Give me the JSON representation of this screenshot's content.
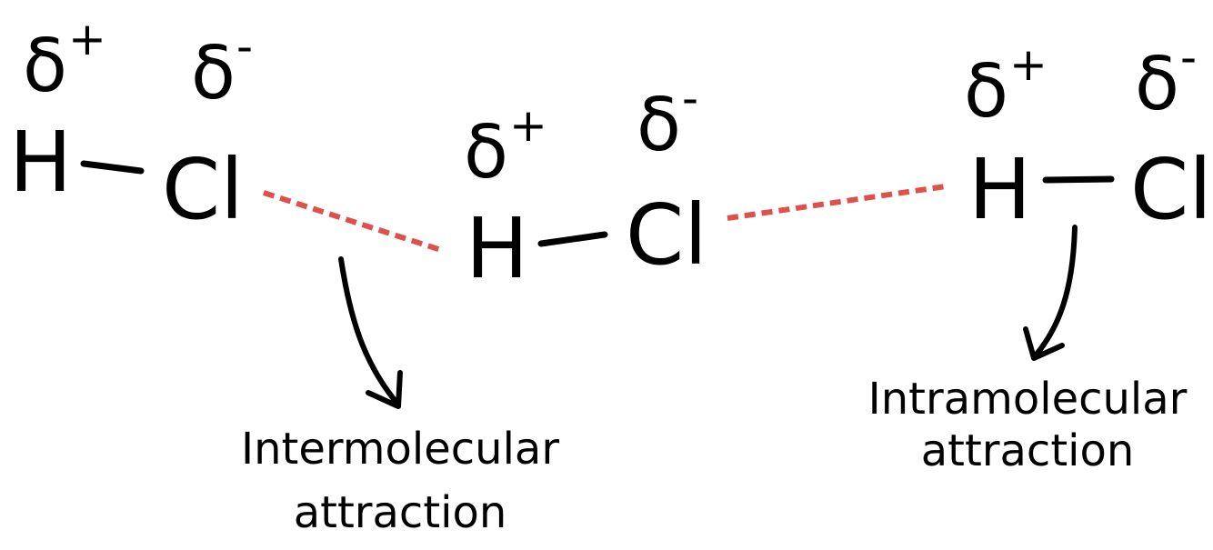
{
  "molecules": [
    {
      "atoms": [
        "H",
        "Cl"
      ],
      "charges": [
        {
          "symbol": "δ",
          "sign": "+"
        },
        {
          "symbol": "δ",
          "sign": "-"
        }
      ]
    },
    {
      "atoms": [
        "H",
        "Cl"
      ],
      "charges": [
        {
          "symbol": "δ",
          "sign": "+"
        },
        {
          "symbol": "δ",
          "sign": "-"
        }
      ]
    },
    {
      "atoms": [
        "H",
        "Cl"
      ],
      "charges": [
        {
          "symbol": "δ",
          "sign": "+"
        },
        {
          "symbol": "δ",
          "sign": "-"
        }
      ]
    }
  ],
  "labels": [
    {
      "lines": [
        "Intermolecular",
        "attraction"
      ]
    },
    {
      "lines": [
        "Intramolecular",
        "attraction"
      ]
    }
  ]
}
